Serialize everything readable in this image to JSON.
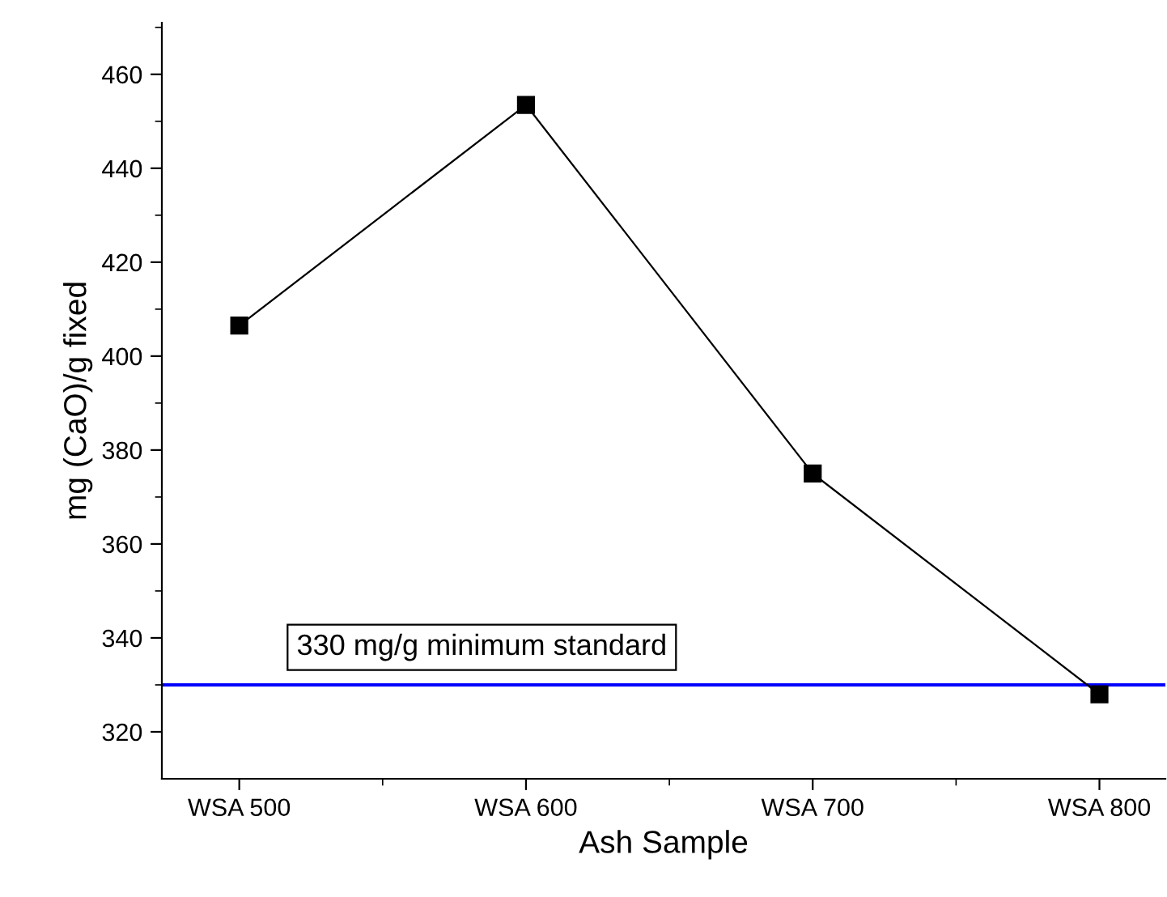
{
  "chart_data": {
    "type": "line",
    "xlabel": "Ash Sample",
    "ylabel": "mg (CaO)/g fixed",
    "categories": [
      "WSA 500",
      "WSA 600",
      "WSA 700",
      "WSA 800"
    ],
    "series": [
      {
        "color": "#000000",
        "values": [
          406.5,
          453.5,
          375,
          328
        ]
      }
    ],
    "ylim": [
      310,
      471
    ],
    "yticks": [
      320,
      340,
      360,
      380,
      400,
      420,
      440,
      460
    ],
    "marker": "square",
    "line_style": "solid",
    "grid": false,
    "legend": false,
    "ref_lines": [
      {
        "axis": "y",
        "value": 330,
        "label": "330 mg/g minimum standard",
        "color": "#0000ff"
      }
    ]
  }
}
